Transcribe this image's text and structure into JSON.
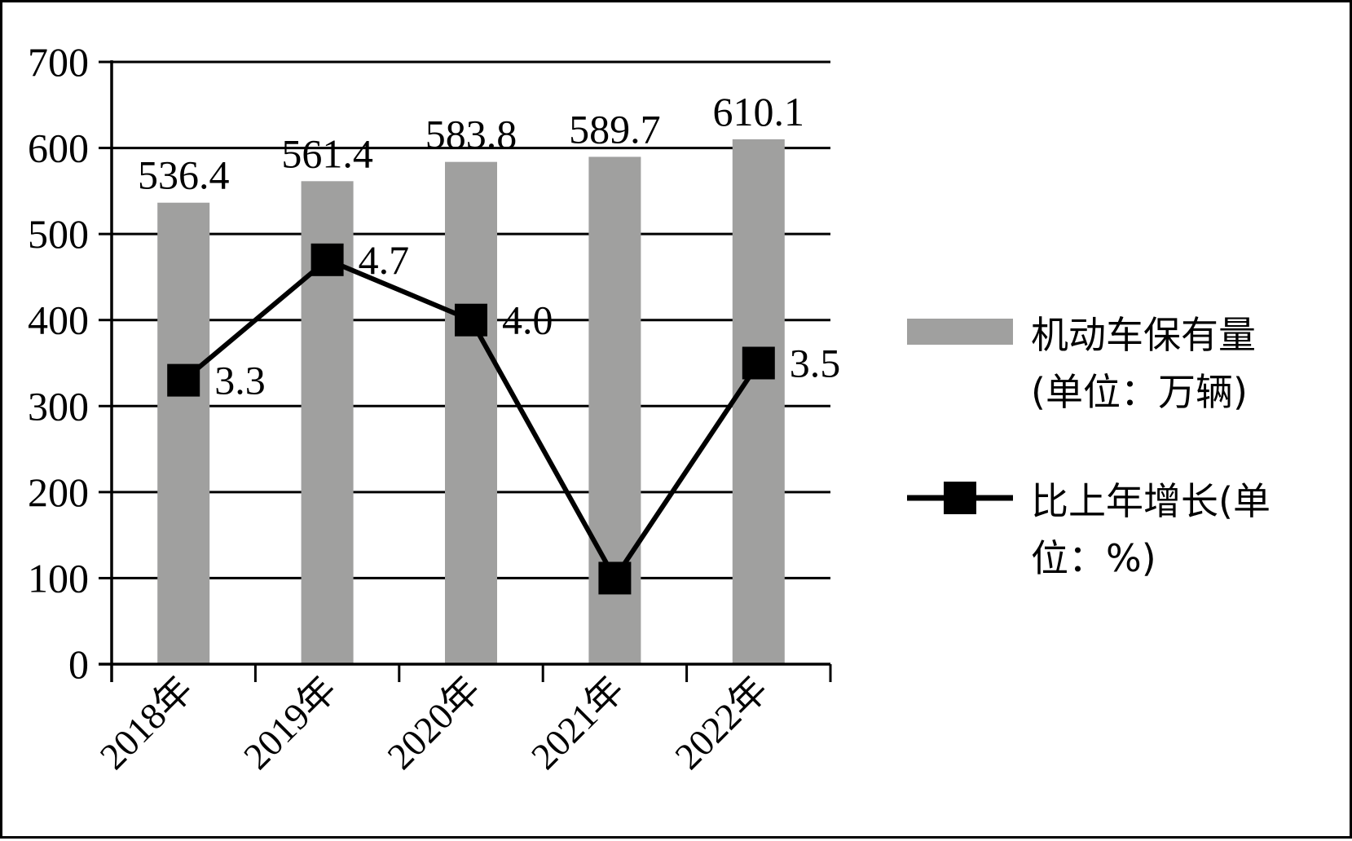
{
  "chart_data": {
    "type": "bar",
    "categories": [
      "2018年",
      "2019年",
      "2020年",
      "2021年",
      "2022年"
    ],
    "series": [
      {
        "name": "机动车保有量(单位：万辆)",
        "legend_lines": [
          "机动车保有量",
          "(单位：万辆)"
        ],
        "type": "bar",
        "values": [
          536.4,
          561.4,
          583.8,
          589.7,
          610.1
        ],
        "labels": [
          "536.4",
          "561.4",
          "583.8",
          "589.7",
          "610.1"
        ],
        "color": "#a0a09f"
      },
      {
        "name": "比上年增长(单位：%)",
        "legend_lines": [
          "比上年增长(单",
          "位：%)"
        ],
        "type": "line",
        "values": [
          3.3,
          4.7,
          4.0,
          1.0,
          3.5
        ],
        "labels": [
          "3.3",
          "4.7",
          "4.0",
          "",
          "3.5"
        ],
        "plot_scale": 100,
        "color": "#000000"
      }
    ],
    "y_ticks": [
      "0",
      "100",
      "200",
      "300",
      "400",
      "500",
      "600",
      "700"
    ],
    "ylim": [
      0,
      700
    ],
    "grid": true,
    "legend_position": "right"
  }
}
